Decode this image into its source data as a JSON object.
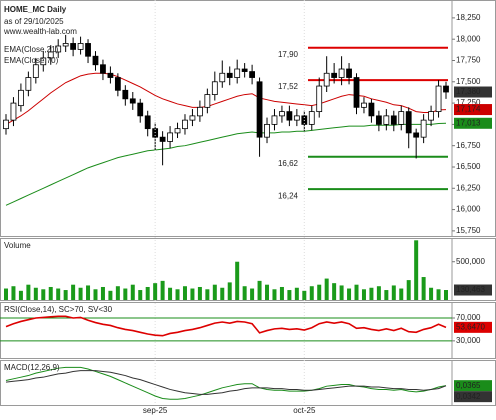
{
  "chart_data": [
    {
      "type": "candlestick",
      "title": "HOME_MC Daily",
      "subtitle": "as of 29/10/2025",
      "source": "www.wealth-lab.com",
      "categories": [
        null,
        null,
        null,
        null,
        null,
        null,
        null,
        null,
        null,
        null,
        null,
        null,
        null,
        null,
        null,
        null,
        null,
        null,
        null,
        null,
        "sep-25",
        null,
        null,
        null,
        null,
        null,
        null,
        null,
        null,
        null,
        null,
        null,
        null,
        null,
        null,
        null,
        null,
        null,
        null,
        null,
        "oct-25",
        null,
        null,
        null,
        null,
        null,
        null,
        null,
        null,
        null,
        null,
        null,
        null,
        null,
        null,
        null,
        null,
        null,
        null,
        null
      ],
      "open": [
        16.95,
        17.05,
        17.22,
        17.4,
        17.55,
        17.7,
        17.78,
        17.85,
        17.92,
        17.95,
        17.88,
        17.95,
        17.8,
        17.7,
        17.6,
        17.55,
        17.4,
        17.3,
        17.25,
        17.1,
        16.95,
        16.85,
        16.8,
        16.9,
        16.95,
        17.05,
        17.1,
        17.2,
        17.35,
        17.5,
        17.6,
        17.55,
        17.65,
        17.62,
        17.5,
        16.85,
        17.0,
        17.1,
        17.15,
        17.05,
        17.1,
        17.0,
        17.15,
        17.45,
        17.6,
        17.55,
        17.65,
        17.55,
        17.2,
        17.25,
        17.1,
        17.0,
        17.1,
        17.0,
        17.15,
        16.9,
        16.85,
        17.05,
        17.15,
        17.45
      ],
      "high": [
        17.12,
        17.32,
        17.48,
        17.62,
        17.78,
        17.86,
        17.93,
        18.0,
        18.05,
        18.02,
        18.03,
        18.0,
        17.86,
        17.76,
        17.68,
        17.6,
        17.46,
        17.38,
        17.3,
        17.16,
        17.02,
        16.92,
        16.98,
        17.02,
        17.12,
        17.18,
        17.28,
        17.42,
        17.62,
        17.75,
        17.68,
        17.76,
        17.72,
        17.7,
        17.55,
        17.08,
        17.18,
        17.22,
        17.22,
        17.18,
        17.16,
        17.22,
        17.55,
        17.8,
        17.72,
        17.8,
        17.72,
        17.6,
        17.32,
        17.3,
        17.16,
        17.18,
        17.16,
        17.22,
        17.2,
        16.95,
        17.12,
        17.22,
        17.52,
        17.5
      ],
      "low": [
        16.88,
        16.98,
        17.15,
        17.33,
        17.48,
        17.62,
        17.7,
        17.78,
        17.85,
        17.8,
        17.82,
        17.72,
        17.63,
        17.52,
        17.48,
        17.33,
        17.22,
        17.17,
        17.02,
        16.86,
        16.7,
        16.52,
        16.72,
        16.84,
        16.88,
        16.98,
        17.03,
        17.13,
        17.28,
        17.43,
        17.46,
        17.48,
        17.55,
        17.47,
        16.62,
        16.78,
        16.93,
        17.02,
        16.98,
        16.98,
        16.92,
        16.93,
        17.08,
        17.38,
        17.48,
        17.46,
        17.47,
        17.12,
        17.13,
        17.02,
        16.92,
        16.93,
        16.92,
        16.93,
        16.72,
        16.6,
        16.78,
        16.98,
        17.08,
        17.3
      ],
      "close": [
        17.05,
        17.25,
        17.4,
        17.55,
        17.7,
        17.78,
        17.85,
        17.92,
        17.95,
        17.88,
        17.95,
        17.8,
        17.7,
        17.6,
        17.55,
        17.4,
        17.3,
        17.25,
        17.1,
        16.95,
        16.85,
        16.8,
        16.9,
        16.95,
        17.05,
        17.1,
        17.2,
        17.35,
        17.5,
        17.6,
        17.55,
        17.65,
        17.62,
        17.55,
        16.85,
        17.0,
        17.1,
        17.15,
        17.05,
        17.1,
        17.0,
        17.15,
        17.45,
        17.6,
        17.55,
        17.65,
        17.55,
        17.2,
        17.25,
        17.1,
        17.0,
        17.1,
        17.0,
        17.15,
        16.9,
        16.85,
        17.05,
        17.15,
        17.45,
        17.38
      ],
      "last_value_label": "17,380",
      "up_color": "#ffffff",
      "down_color": "#000000",
      "last_color": "#333333",
      "series": [
        {
          "name": "EMA(Close,21)",
          "color": "#cc0000",
          "last_value_label": "17,174",
          "values": [
            17.0,
            17.05,
            17.1,
            17.16,
            17.23,
            17.3,
            17.37,
            17.43,
            17.49,
            17.53,
            17.57,
            17.59,
            17.6,
            17.6,
            17.59,
            17.56,
            17.52,
            17.48,
            17.44,
            17.39,
            17.34,
            17.3,
            17.27,
            17.24,
            17.22,
            17.2,
            17.2,
            17.21,
            17.24,
            17.27,
            17.3,
            17.33,
            17.35,
            17.36,
            17.31,
            17.29,
            17.27,
            17.26,
            17.25,
            17.24,
            17.23,
            17.22,
            17.24,
            17.27,
            17.3,
            17.33,
            17.35,
            17.34,
            17.33,
            17.3,
            17.28,
            17.26,
            17.23,
            17.22,
            17.19,
            17.15,
            17.14,
            17.14,
            17.17,
            17.174
          ]
        },
        {
          "name": "EMA(Close,70)",
          "color": "#1a8c1a",
          "last_value_label": "17,013",
          "values": [
            16.05,
            16.09,
            16.13,
            16.17,
            16.21,
            16.25,
            16.29,
            16.33,
            16.37,
            16.41,
            16.45,
            16.49,
            16.52,
            16.55,
            16.58,
            16.61,
            16.63,
            16.65,
            16.67,
            16.69,
            16.7,
            16.71,
            16.72,
            16.74,
            16.75,
            16.77,
            16.79,
            16.81,
            16.83,
            16.85,
            16.87,
            16.89,
            16.9,
            16.91,
            16.9,
            16.9,
            16.9,
            16.91,
            16.91,
            16.92,
            16.92,
            16.93,
            16.94,
            16.95,
            16.96,
            16.97,
            16.98,
            16.98,
            16.98,
            16.99,
            16.99,
            16.99,
            16.99,
            17.0,
            17.0,
            17.0,
            17.0,
            17.0,
            17.01,
            17.013
          ]
        }
      ],
      "levels": [
        {
          "value": 17.9,
          "label": "17,90",
          "color": "#dd0000"
        },
        {
          "value": 17.52,
          "label": "17,52",
          "color": "#dd0000"
        },
        {
          "value": 16.62,
          "label": "16,62",
          "color": "#1a8c1a"
        },
        {
          "value": 16.24,
          "label": "16,24",
          "color": "#1a8c1a"
        }
      ],
      "ylim": [
        15.69,
        18.46
      ],
      "yticks": [
        {
          "value": 15.75,
          "label": "15,750"
        },
        {
          "value": 16,
          "label": "16,000"
        },
        {
          "value": 16.25,
          "label": "16,250"
        },
        {
          "value": 16.5,
          "label": "16,500"
        },
        {
          "value": 16.75,
          "label": "16,750"
        },
        {
          "value": 17,
          "label": "17,000"
        },
        {
          "value": 17.25,
          "label": "17,250"
        },
        {
          "value": 17.5,
          "label": "17,500"
        },
        {
          "value": 17.75,
          "label": "17,750"
        },
        {
          "value": 18,
          "label": "18,000"
        },
        {
          "value": 18.25,
          "label": "18,250"
        }
      ]
    },
    {
      "type": "bar",
      "title": "Volume",
      "color": "#1a9a1a",
      "last_value_label": "130,463",
      "last_color": "#333333",
      "values": [
        150000,
        180000,
        120000,
        200000,
        160000,
        140000,
        170000,
        150000,
        130000,
        200000,
        160000,
        190000,
        140000,
        170000,
        120000,
        180000,
        150000,
        200000,
        130000,
        170000,
        220000,
        250000,
        160000,
        140000,
        180000,
        150000,
        170000,
        140000,
        200000,
        160000,
        230000,
        500000,
        180000,
        150000,
        250000,
        200000,
        140000,
        170000,
        130000,
        160000,
        120000,
        180000,
        200000,
        280000,
        220000,
        190000,
        150000,
        200000,
        140000,
        160000,
        180000,
        130000,
        190000,
        150000,
        260000,
        780000,
        300000,
        160000,
        140000,
        130463
      ],
      "ylim": [
        0,
        810000
      ],
      "yticks": [
        {
          "value": 500000,
          "label": "500,000"
        }
      ]
    },
    {
      "type": "line",
      "title": "RSI(Close,14), SC>70, SV<30",
      "grid_color": "#1a8c1a",
      "series": [
        {
          "color": "#dd0000",
          "last_value_label": "53,6470",
          "values": [
            55,
            60,
            64,
            67,
            70,
            71,
            72,
            73,
            73,
            70,
            71,
            66,
            62,
            59,
            57,
            53,
            50,
            48,
            45,
            42,
            40,
            39,
            43,
            45,
            48,
            50,
            53,
            57,
            61,
            63,
            61,
            64,
            63,
            60,
            44,
            48,
            51,
            52,
            50,
            51,
            49,
            53,
            60,
            63,
            61,
            63,
            60,
            52,
            53,
            50,
            48,
            51,
            48,
            52,
            46,
            45,
            50,
            53,
            59,
            53.647
          ]
        }
      ],
      "ylim": [
        0,
        98
      ],
      "yticks": [
        {
          "value": 70,
          "label": "70,000"
        },
        {
          "value": 30,
          "label": "30,000"
        }
      ]
    },
    {
      "type": "line",
      "title": "MACD(12,26,9)",
      "series": [
        {
          "color": "#1a8c1a",
          "last_value_label": "0,0365",
          "values": [
            0.1,
            0.12,
            0.14,
            0.16,
            0.19,
            0.21,
            0.23,
            0.25,
            0.26,
            0.26,
            0.26,
            0.24,
            0.21,
            0.18,
            0.15,
            0.11,
            0.07,
            0.03,
            -0.01,
            -0.05,
            -0.09,
            -0.12,
            -0.13,
            -0.13,
            -0.12,
            -0.1,
            -0.08,
            -0.05,
            -0.02,
            0.01,
            0.03,
            0.05,
            0.06,
            0.06,
            0.01,
            -0.01,
            -0.02,
            -0.02,
            -0.03,
            -0.03,
            -0.03,
            -0.02,
            0.0,
            0.03,
            0.04,
            0.05,
            0.05,
            0.03,
            0.02,
            0.0,
            -0.01,
            -0.01,
            -0.02,
            -0.01,
            -0.03,
            -0.04,
            -0.03,
            -0.01,
            0.02,
            0.0365
          ]
        },
        {
          "color": "#333333",
          "last_value_label": "0,0342",
          "values": [
            0.08,
            0.09,
            0.1,
            0.11,
            0.13,
            0.14,
            0.16,
            0.18,
            0.19,
            0.21,
            0.22,
            0.22,
            0.22,
            0.21,
            0.2,
            0.18,
            0.16,
            0.13,
            0.11,
            0.08,
            0.05,
            0.02,
            -0.01,
            -0.03,
            -0.05,
            -0.06,
            -0.07,
            -0.07,
            -0.06,
            -0.05,
            -0.03,
            -0.02,
            0.0,
            0.01,
            0.01,
            0.01,
            0.0,
            0.0,
            -0.01,
            -0.01,
            -0.02,
            -0.02,
            -0.01,
            0.0,
            0.01,
            0.02,
            0.03,
            0.03,
            0.03,
            0.02,
            0.02,
            0.01,
            0.0,
            0.0,
            -0.01,
            -0.01,
            -0.02,
            -0.01,
            0.0,
            0.0342
          ]
        }
      ],
      "ylim": [
        -0.2,
        0.35
      ]
    }
  ]
}
